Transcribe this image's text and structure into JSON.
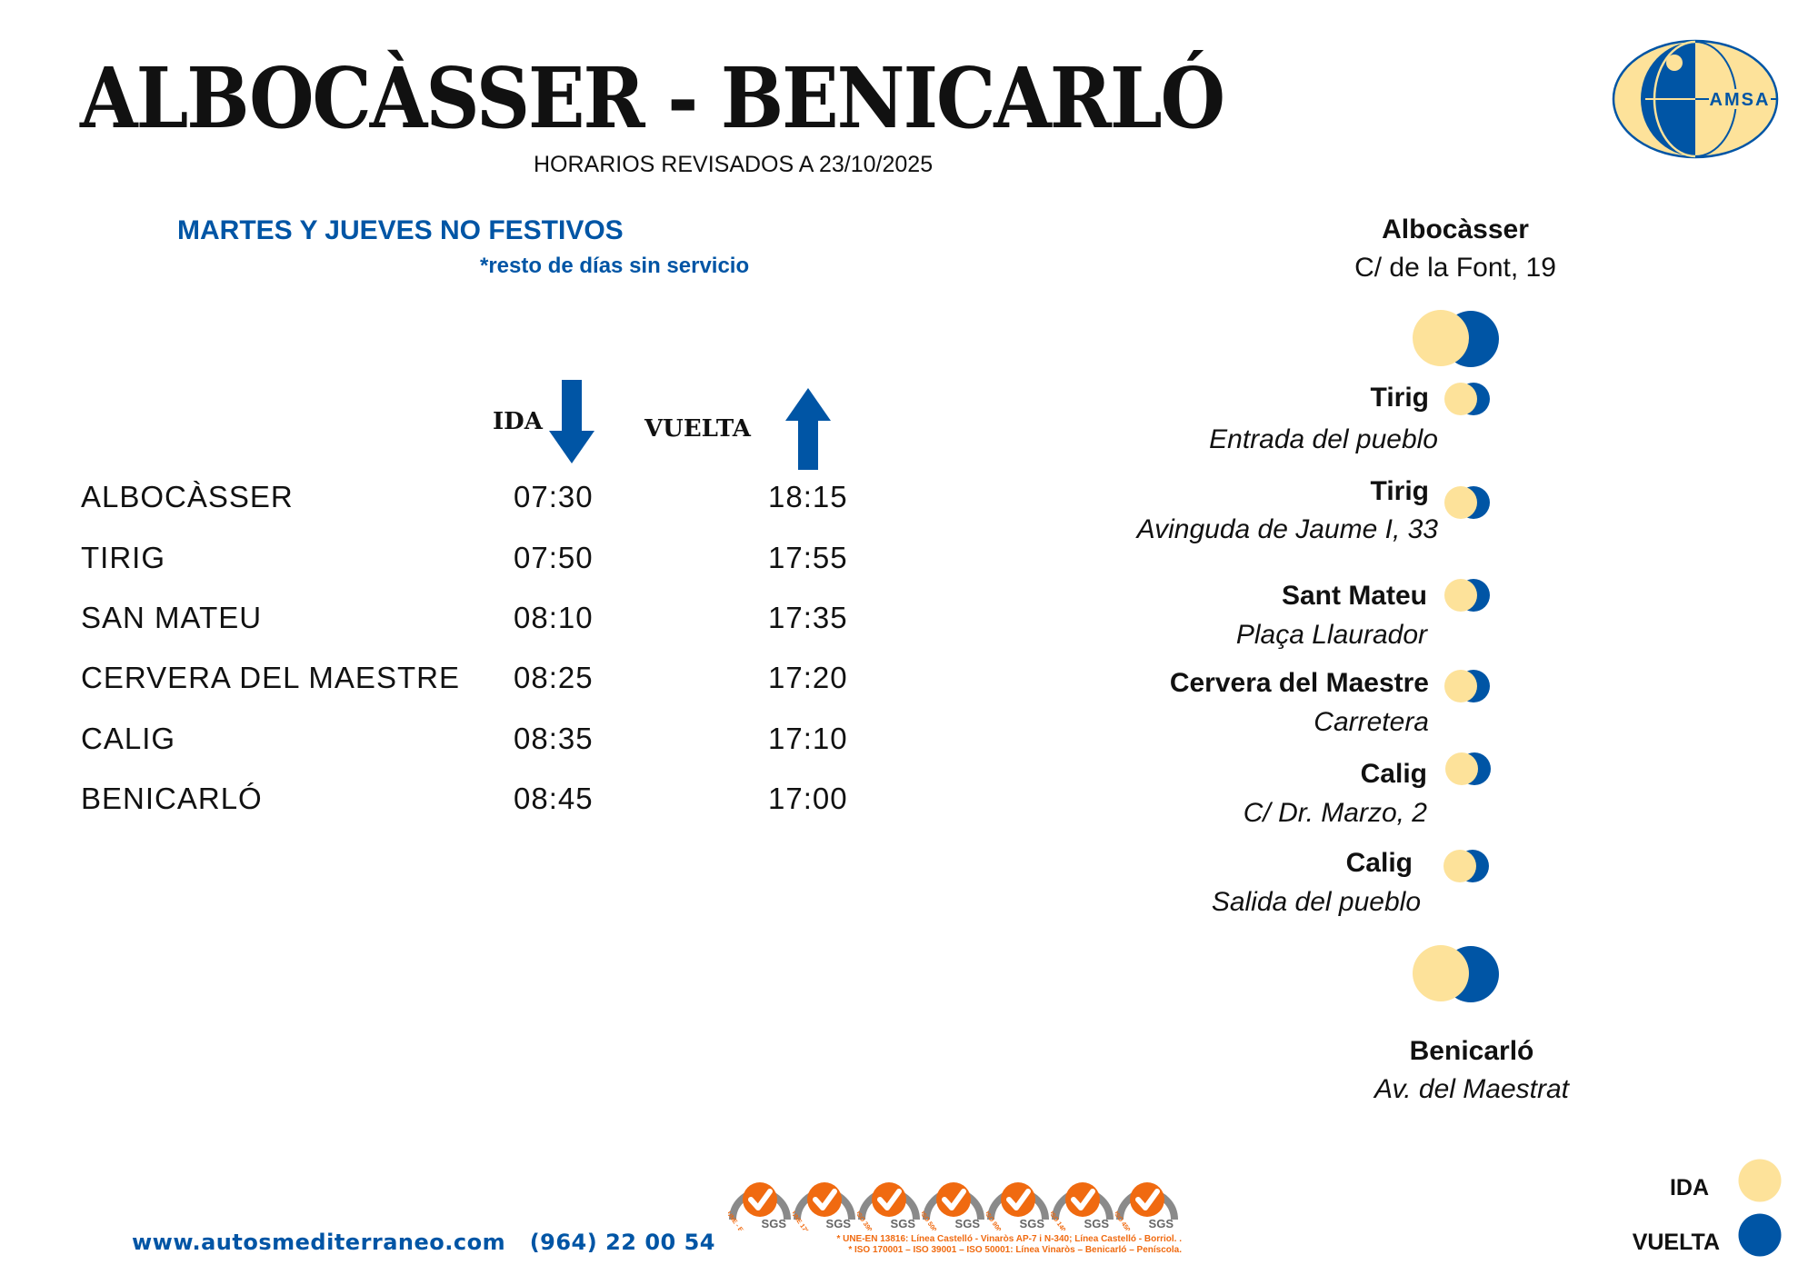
{
  "header": {
    "title": "ALBOCÀSSER - BENICARLÓ",
    "revision": "HORARIOS REVISADOS A 23/10/2025",
    "logo_text": "AMSA"
  },
  "service": {
    "days": "MARTES Y JUEVES NO FESTIVOS",
    "note": "*resto de días sin servicio"
  },
  "timetable": {
    "col_ida": "IDA",
    "col_vuelta": "VUELTA",
    "rows": [
      {
        "stop": "ALBOCÀSSER",
        "ida": "07:30",
        "vuelta": "18:15"
      },
      {
        "stop": "TIRIG",
        "ida": "07:50",
        "vuelta": "17:55"
      },
      {
        "stop": "SAN MATEU",
        "ida": "08:10",
        "vuelta": "17:35"
      },
      {
        "stop": "CERVERA DEL MAESTRE",
        "ida": "08:25",
        "vuelta": "17:20"
      },
      {
        "stop": "CALIG",
        "ida": "08:35",
        "vuelta": "17:10"
      },
      {
        "stop": "BENICARLÓ",
        "ida": "08:45",
        "vuelta": "17:00"
      }
    ]
  },
  "route": {
    "origin": {
      "name": "Albocàsser",
      "address": "C/ de la Font, 19"
    },
    "stops": [
      {
        "name": "Tirig",
        "address": "Entrada del pueblo"
      },
      {
        "name": "Tirig",
        "address": "Avinguda de Jaume I, 33"
      },
      {
        "name": "Sant Mateu",
        "address": "Plaça  Llaurador"
      },
      {
        "name": "Cervera del Maestre",
        "address": "Carretera"
      },
      {
        "name": "Calig",
        "address": "C/ Dr. Marzo, 2"
      },
      {
        "name": "Calig",
        "address": "Salida del pueblo"
      }
    ],
    "destination": {
      "name": "Benicarló",
      "address": "Av. del Maestrat"
    }
  },
  "legend": {
    "ida": "IDA",
    "vuelta": "VUELTA"
  },
  "footer": {
    "contact": "www.autosmediterraneo.com   (964) 22 00 54",
    "certifications": [
      "UNE - EN 13816",
      "UNE 170001",
      "ISO 39001",
      "ISO 50001",
      "ISO 9001",
      "ISO 14001",
      "ISO 45001"
    ],
    "cert_brand": "SGS",
    "cert_arc": "SYSTEM CERTIFICATION",
    "cert_note_1": "* UNE-EN 13816: Línea Castelló - Vinaròs AP-7 i N-340; Línea Castelló - Borriol. .",
    "cert_note_2": "* ISO 170001 – ISO 39001 – ISO 50001: Línea Vinaròs – Benicarló – Peníscola."
  },
  "colors": {
    "ida": "#FDE29A",
    "vuelta": "#0055A5",
    "cert_orange": "#F06A10"
  }
}
